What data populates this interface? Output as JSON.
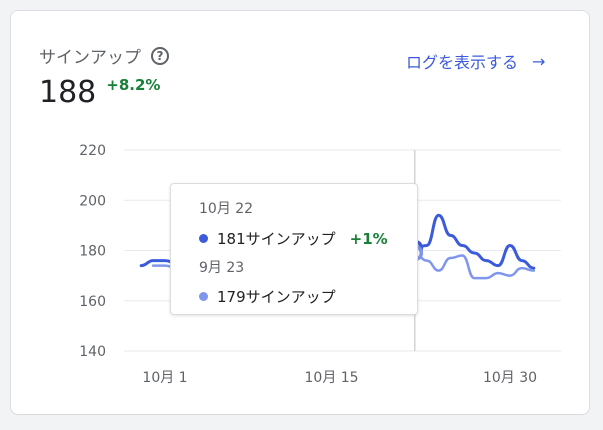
{
  "card": {
    "title": "サインアップ",
    "help_icon": "help-circle-icon",
    "metric": "188",
    "delta": "+8.2%",
    "view_logs_label": "ログを表示する",
    "view_logs_arrow": "→"
  },
  "tooltip": {
    "current_date": "10月 22",
    "current_text": "181サインアップ",
    "current_delta": "+1%",
    "previous_date": "9月 23",
    "previous_text": "179サインアップ"
  },
  "colors": {
    "current": "#3b5bdb",
    "previous": "#7f96ec",
    "positive": "#188038",
    "link": "#3b5bdb"
  },
  "chart_data": {
    "type": "line",
    "y_ticks": [
      "220",
      "200",
      "180",
      "160",
      "140"
    ],
    "x_tick_labels": [
      "10月 1",
      "10月 15",
      "10月 30"
    ],
    "ylim": [
      140,
      220
    ],
    "grid": true,
    "hover_day": 22,
    "series": [
      {
        "x": [
          -1,
          0,
          1,
          2,
          3,
          4,
          5,
          6,
          7,
          8,
          9,
          10,
          11,
          12,
          13,
          14,
          15,
          16,
          17,
          18,
          19,
          20,
          21,
          22,
          23,
          24,
          25,
          26,
          27,
          28,
          29,
          30,
          31,
          32
        ],
        "values": [
          174,
          176,
          176,
          175,
          176,
          177,
          176,
          175,
          176,
          177,
          176,
          176,
          177,
          176,
          177,
          176,
          176,
          177,
          176,
          177,
          176,
          176,
          178,
          181,
          182,
          194,
          186,
          182,
          179,
          176,
          174,
          182,
          176,
          173
        ]
      },
      {
        "x": [
          0,
          1,
          2,
          3,
          4,
          5,
          6,
          7,
          8,
          9,
          10,
          11,
          12,
          13,
          14,
          15,
          16,
          17,
          18,
          19,
          20,
          21,
          22,
          23,
          24,
          25,
          26,
          27,
          28,
          29,
          30,
          31,
          32
        ],
        "values": [
          174,
          174,
          173,
          174,
          174,
          174,
          174,
          174,
          174,
          174,
          174,
          174,
          174,
          174,
          174,
          174,
          174,
          174,
          174,
          174,
          174,
          174,
          179,
          176,
          172,
          177,
          178,
          169,
          169,
          171,
          170,
          173,
          172
        ]
      }
    ]
  }
}
